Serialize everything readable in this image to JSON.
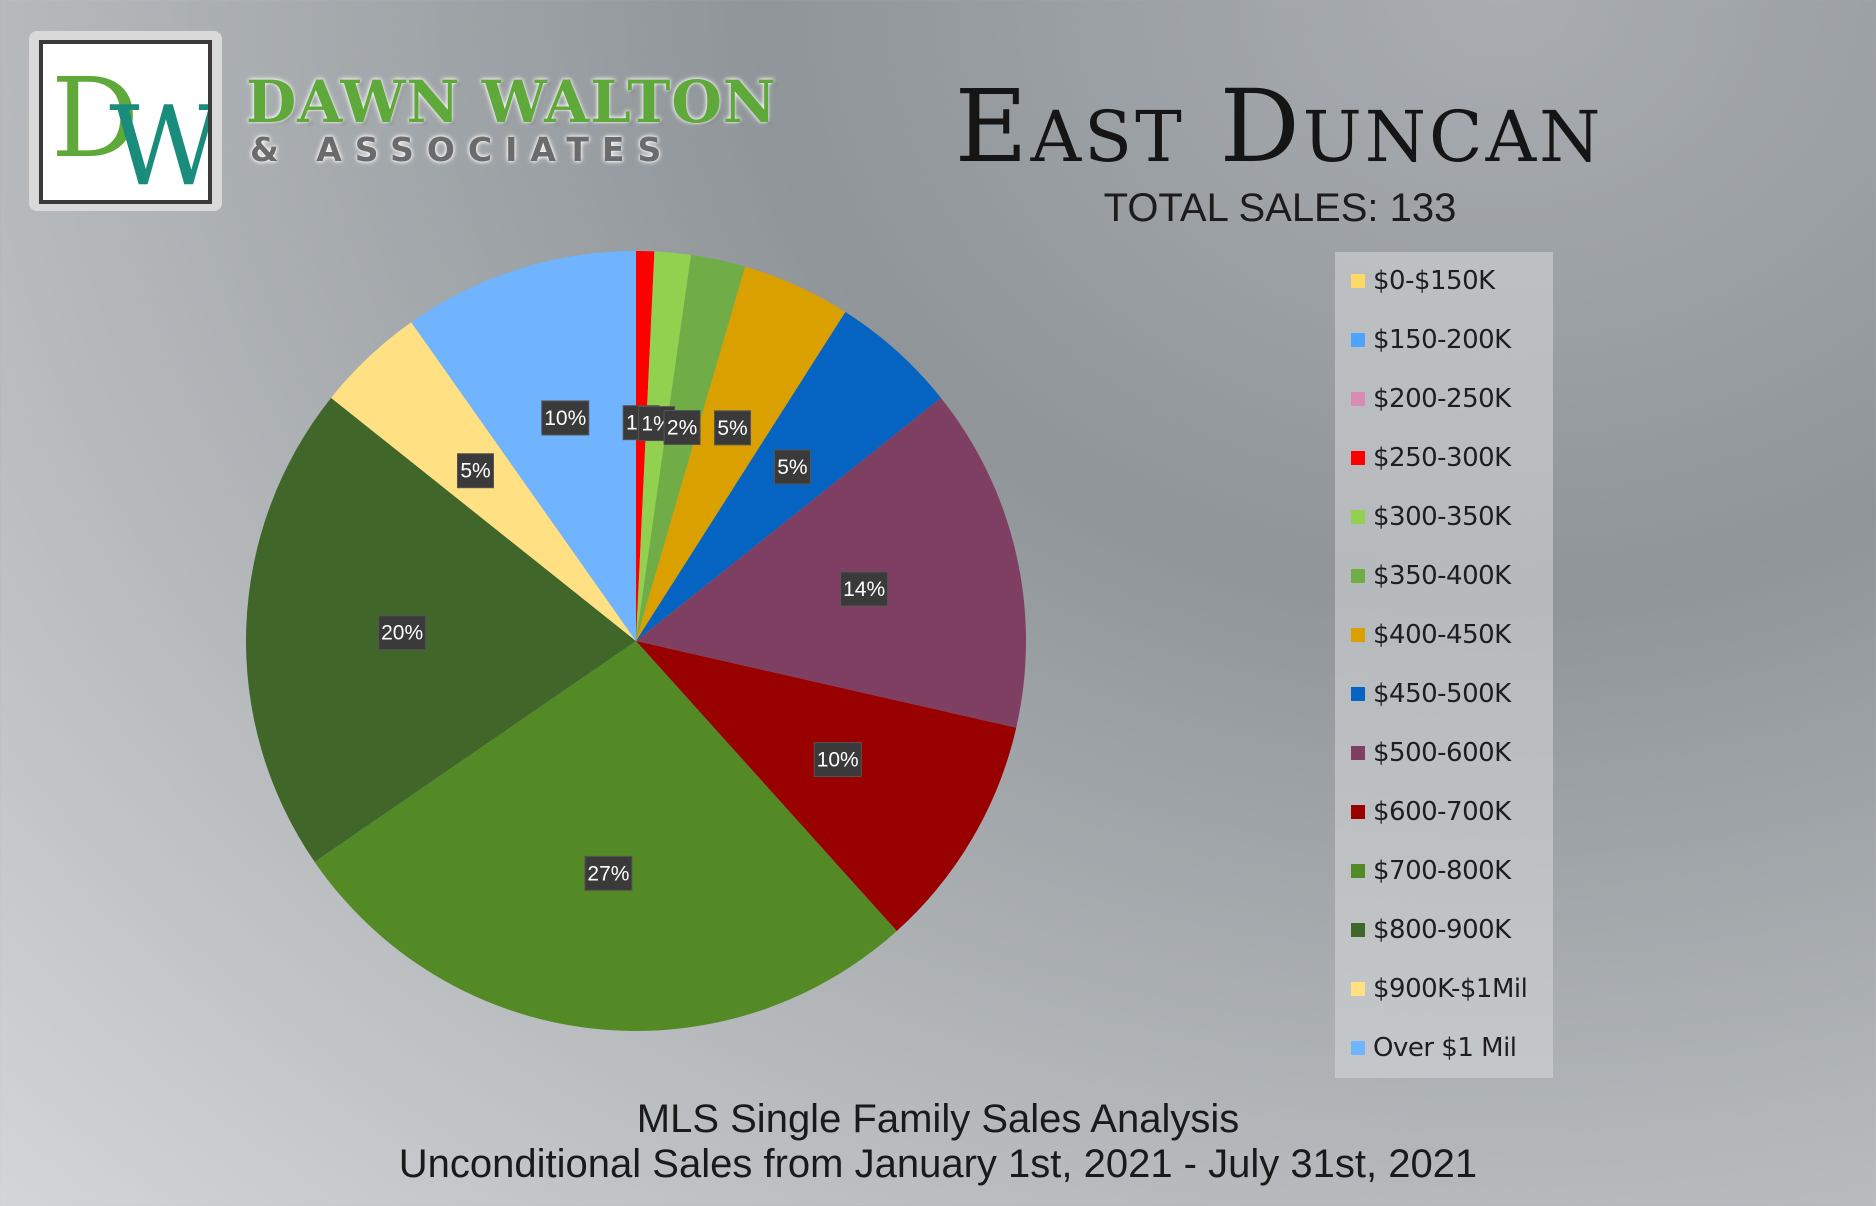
{
  "brand": {
    "monogram": "DW",
    "name": "DAWN WALTON",
    "sub": "& ASSOCIATES",
    "colors": {
      "green": "#5fa83a",
      "teal": "#1a8c7c"
    }
  },
  "title": "East Duncan",
  "total_sales": "TOTAL SALES: 133",
  "footer": {
    "line1": "MLS Single Family Sales Analysis",
    "line2": "Unconditional Sales from January 1st, 2021 - July 31st, 2021"
  },
  "chart_data": {
    "type": "pie",
    "title": "",
    "legend_placement": "right",
    "categories": [
      "$0-$150K",
      "$150-200K",
      "$200-250K",
      "$250-300K",
      "$300-350K",
      "$350-400K",
      "$400-450K",
      "$450-500K",
      "$500-600K",
      "$600-700K",
      "$700-800K",
      "$800-900K",
      "$900K-$1Mil",
      "Over $1 Mil"
    ],
    "values": [
      0,
      0,
      0,
      1,
      2,
      3,
      6,
      7,
      19,
      13,
      36,
      27,
      6,
      13
    ],
    "labels": [
      "",
      "",
      "",
      "1%",
      "1%",
      "2%",
      "5%",
      "5%",
      "14%",
      "10%",
      "27%",
      "20%",
      "5%",
      "10%"
    ],
    "colors": [
      "#ffd966",
      "#4da3ff",
      "#d98cb3",
      "#ff0000",
      "#92d050",
      "#70ad47",
      "#d9a000",
      "#0563c1",
      "#7f3f62",
      "#990000",
      "#538a26",
      "#416629",
      "#ffe082",
      "#70b4ff"
    ]
  }
}
